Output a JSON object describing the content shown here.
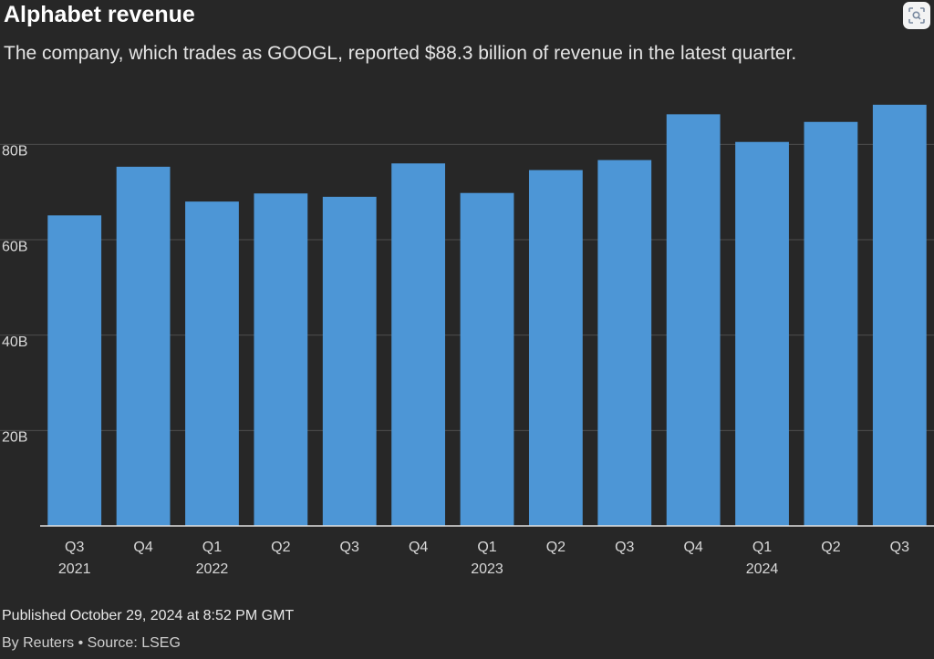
{
  "header": {
    "title": "Alphabet revenue",
    "subtitle": "The company, which trades as GOOGL, reported $88.3 billion of revenue in the latest quarter."
  },
  "footer": {
    "published": "Published October 29, 2024 at 8:52 PM GMT",
    "byline": "By Reuters • Source: LSEG"
  },
  "icons": {
    "lens": "visual-search-icon"
  },
  "colors": {
    "background": "#272727",
    "bar": "#4d96d6",
    "grid": "#4e4e4e",
    "axis": "#e0e0e0"
  },
  "chart_data": {
    "type": "bar",
    "categories": [
      "Q3",
      "Q4",
      "Q1",
      "Q2",
      "Q3",
      "Q4",
      "Q1",
      "Q2",
      "Q3",
      "Q4",
      "Q1",
      "Q2",
      "Q3"
    ],
    "year_labels": [
      "2021",
      "",
      "2022",
      "",
      "",
      "",
      "2023",
      "",
      "",
      "",
      "2024",
      "",
      ""
    ],
    "values": [
      65.1,
      75.3,
      68.0,
      69.7,
      69.0,
      76.0,
      69.8,
      74.6,
      76.7,
      86.3,
      80.5,
      84.7,
      88.3
    ],
    "yticks": [
      20,
      40,
      60,
      80
    ],
    "ytick_labels": [
      "20B",
      "40B",
      "60B",
      "80B"
    ],
    "ylim": [
      0,
      90
    ],
    "grid": true
  }
}
